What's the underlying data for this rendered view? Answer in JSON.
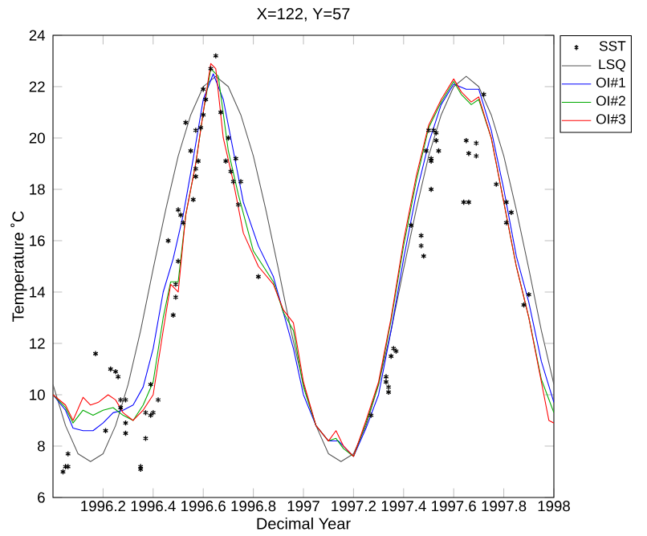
{
  "chart_data": {
    "type": "line",
    "title": "X=122, Y=57",
    "xlabel": "Decimal Year",
    "ylabel": "Temperature ˚C",
    "xlim": [
      1996,
      1998
    ],
    "ylim": [
      6,
      24
    ],
    "xticks": [
      1996.2,
      1996.4,
      1996.6,
      1996.8,
      1997,
      1997.2,
      1997.4,
      1997.6,
      1997.8,
      1998
    ],
    "yticks": [
      6,
      8,
      10,
      12,
      14,
      16,
      18,
      20,
      22,
      24
    ],
    "grid": false,
    "legend": "top right",
    "series": [
      {
        "name": "SST",
        "type": "scatter",
        "marker": "cross",
        "color": "#000000",
        "x": [
          1996.04,
          1996.05,
          1996.06,
          1996.06,
          1996.17,
          1996.21,
          1996.23,
          1996.25,
          1996.26,
          1996.27,
          1996.27,
          1996.29,
          1996.29,
          1996.29,
          1996.35,
          1996.35,
          1996.37,
          1996.37,
          1996.39,
          1996.4,
          1996.39,
          1996.42,
          1996.46,
          1996.48,
          1996.49,
          1996.49,
          1996.5,
          1996.5,
          1996.51,
          1996.52,
          1996.53,
          1996.55,
          1996.56,
          1996.57,
          1996.57,
          1996.57,
          1996.58,
          1996.59,
          1996.6,
          1996.6,
          1996.61,
          1996.63,
          1996.65,
          1996.67,
          1996.69,
          1996.7,
          1996.71,
          1996.72,
          1996.73,
          1996.74,
          1996.75,
          1996.82,
          1997.27,
          1997.33,
          1997.33,
          1997.34,
          1997.34,
          1997.35,
          1997.36,
          1997.37,
          1997.43,
          1997.47,
          1997.47,
          1997.48,
          1997.49,
          1997.5,
          1997.51,
          1997.51,
          1997.51,
          1997.52,
          1997.53,
          1997.53,
          1997.54,
          1997.65,
          1997.66,
          1997.64,
          1997.66,
          1997.69,
          1997.69,
          1997.72,
          1997.77,
          1997.81,
          1997.81,
          1997.83,
          1997.88,
          1997.9
        ],
        "values": [
          7.0,
          7.2,
          7.7,
          7.2,
          11.6,
          8.6,
          11.0,
          10.9,
          10.7,
          9.8,
          9.5,
          9.8,
          8.9,
          8.5,
          7.2,
          7.1,
          8.3,
          9.3,
          9.2,
          9.3,
          10.4,
          9.8,
          16.0,
          13.1,
          14.3,
          13.8,
          15.2,
          17.2,
          17.0,
          16.7,
          20.6,
          19.5,
          17.6,
          18.5,
          18.8,
          20.3,
          19.1,
          20.4,
          20.9,
          21.9,
          21.5,
          22.7,
          23.2,
          21.0,
          19.1,
          20.0,
          18.7,
          18.3,
          19.2,
          17.4,
          18.3,
          14.6,
          9.2,
          10.7,
          10.5,
          10.1,
          10.3,
          11.5,
          11.8,
          11.7,
          16.6,
          16.2,
          15.8,
          15.4,
          19.5,
          20.3,
          19.1,
          18.0,
          19.2,
          20.3,
          20.2,
          19.9,
          19.5,
          19.9,
          19.4,
          17.5,
          17.5,
          19.8,
          19.3,
          21.7,
          18.2,
          17.5,
          16.7,
          17.1,
          13.5,
          13.9
        ]
      },
      {
        "name": "LSQ",
        "color": "#555555",
        "x": [
          1996.0,
          1996.05,
          1996.1,
          1996.15,
          1996.2,
          1996.25,
          1996.3,
          1996.35,
          1996.4,
          1996.45,
          1996.5,
          1996.55,
          1996.6,
          1996.65,
          1996.7,
          1996.75,
          1996.8,
          1996.85,
          1996.9,
          1996.95,
          1997.0,
          1997.05,
          1997.1,
          1997.15,
          1997.2,
          1997.25,
          1997.3,
          1997.35,
          1997.4,
          1997.45,
          1997.5,
          1997.55,
          1997.6,
          1997.65,
          1997.7,
          1997.75,
          1997.8,
          1997.85,
          1997.9,
          1997.95,
          1998.0
        ],
        "values": [
          10.4,
          8.8,
          7.7,
          7.4,
          7.7,
          8.8,
          10.4,
          12.5,
          14.9,
          17.2,
          19.3,
          20.9,
          22.0,
          22.4,
          22.0,
          20.9,
          19.3,
          17.2,
          14.9,
          12.5,
          10.4,
          8.8,
          7.7,
          7.4,
          7.7,
          8.8,
          10.4,
          12.5,
          14.9,
          17.2,
          19.3,
          20.9,
          22.0,
          22.4,
          22.0,
          20.9,
          19.3,
          17.2,
          14.9,
          12.5,
          10.4
        ]
      },
      {
        "name": "OI#1",
        "color": "#0000ff",
        "x": [
          1996.0,
          1996.05,
          1996.08,
          1996.12,
          1996.16,
          1996.2,
          1996.24,
          1996.28,
          1996.32,
          1996.36,
          1996.4,
          1996.44,
          1996.48,
          1996.52,
          1996.56,
          1996.6,
          1996.64,
          1996.68,
          1996.72,
          1996.76,
          1996.82,
          1996.88,
          1996.92,
          1996.96,
          1997.0,
          1997.05,
          1997.1,
          1997.14,
          1997.2,
          1997.25,
          1997.3,
          1997.35,
          1997.4,
          1997.45,
          1997.5,
          1997.55,
          1997.6,
          1997.65,
          1997.7,
          1997.75,
          1997.8,
          1997.85,
          1997.9,
          1997.95,
          1998.0
        ],
        "values": [
          10.0,
          9.4,
          8.7,
          8.6,
          8.6,
          8.9,
          9.3,
          9.4,
          9.6,
          10.3,
          11.8,
          14.0,
          15.3,
          17.0,
          19.2,
          21.5,
          22.5,
          21.5,
          19.5,
          17.5,
          15.8,
          14.6,
          13.2,
          11.8,
          10.0,
          8.8,
          8.2,
          8.2,
          7.6,
          8.7,
          10.0,
          12.5,
          15.3,
          17.8,
          19.8,
          21.3,
          22.1,
          21.9,
          21.9,
          20.3,
          18.0,
          15.4,
          13.6,
          11.3,
          9.7
        ]
      },
      {
        "name": "OI#2",
        "color": "#00aa00",
        "x": [
          1996.0,
          1996.05,
          1996.08,
          1996.12,
          1996.16,
          1996.2,
          1996.24,
          1996.28,
          1996.32,
          1996.36,
          1996.4,
          1996.44,
          1996.47,
          1996.5,
          1996.53,
          1996.57,
          1996.6,
          1996.63,
          1996.66,
          1996.7,
          1996.74,
          1996.8,
          1996.88,
          1996.92,
          1996.96,
          1997.0,
          1997.05,
          1997.1,
          1997.13,
          1997.16,
          1997.2,
          1997.25,
          1997.3,
          1997.35,
          1997.4,
          1997.45,
          1997.5,
          1997.55,
          1997.6,
          1997.63,
          1997.67,
          1997.7,
          1997.75,
          1997.8,
          1997.85,
          1997.9,
          1997.95,
          1998.0
        ],
        "values": [
          10.0,
          9.5,
          8.9,
          9.4,
          9.2,
          9.4,
          9.5,
          9.2,
          9.0,
          9.6,
          10.5,
          13.0,
          14.4,
          14.4,
          17.0,
          19.0,
          21.0,
          22.7,
          22.4,
          19.5,
          17.8,
          15.6,
          14.4,
          13.2,
          12.5,
          10.3,
          8.8,
          8.2,
          8.3,
          7.9,
          7.6,
          8.9,
          10.4,
          12.9,
          15.8,
          18.3,
          20.4,
          21.4,
          22.2,
          21.7,
          21.3,
          21.5,
          20.0,
          17.5,
          15.0,
          13.0,
          10.6,
          9.3
        ]
      },
      {
        "name": "OI#3",
        "color": "#ff0000",
        "x": [
          1996.0,
          1996.05,
          1996.08,
          1996.12,
          1996.15,
          1996.18,
          1996.22,
          1996.25,
          1996.28,
          1996.32,
          1996.36,
          1996.4,
          1996.44,
          1996.47,
          1996.5,
          1996.53,
          1996.57,
          1996.6,
          1996.63,
          1996.65,
          1996.68,
          1996.72,
          1996.76,
          1996.82,
          1996.88,
          1996.92,
          1996.96,
          1997.0,
          1997.05,
          1997.1,
          1997.13,
          1997.16,
          1997.2,
          1997.25,
          1997.3,
          1997.35,
          1997.4,
          1997.45,
          1997.5,
          1997.55,
          1997.6,
          1997.63,
          1997.67,
          1997.7,
          1997.75,
          1997.8,
          1997.85,
          1997.9,
          1997.95,
          1997.98,
          1998.0
        ],
        "values": [
          10.0,
          9.6,
          9.0,
          9.9,
          9.6,
          9.7,
          10.0,
          9.8,
          9.3,
          9.0,
          9.4,
          10.0,
          12.5,
          14.3,
          14.0,
          17.0,
          19.0,
          21.0,
          22.9,
          22.7,
          20.0,
          18.3,
          16.3,
          15.0,
          14.3,
          13.3,
          12.8,
          10.5,
          8.8,
          8.2,
          8.6,
          8.0,
          7.6,
          9.0,
          10.5,
          13.0,
          16.0,
          18.5,
          20.5,
          21.5,
          22.3,
          21.8,
          21.4,
          21.6,
          20.0,
          17.5,
          15.0,
          13.0,
          10.5,
          9.0,
          8.9
        ]
      }
    ]
  }
}
